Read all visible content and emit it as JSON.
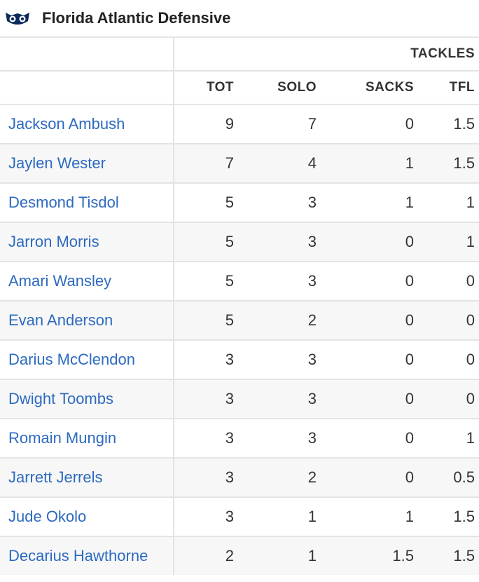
{
  "header": {
    "title": "Florida Atlantic Defensive"
  },
  "table": {
    "group_header": "TACKLES",
    "columns": [
      "TOT",
      "SOLO",
      "SACKS",
      "TFL"
    ],
    "rows": [
      [
        "Jackson Ambush",
        9,
        7,
        0,
        1.5
      ],
      [
        "Jaylen Wester",
        7,
        4,
        1,
        1.5
      ],
      [
        "Desmond Tisdol",
        5,
        3,
        1,
        1
      ],
      [
        "Jarron Morris",
        5,
        3,
        0,
        1
      ],
      [
        "Amari Wansley",
        5,
        3,
        0,
        0
      ],
      [
        "Evan Anderson",
        5,
        2,
        0,
        0
      ],
      [
        "Darius McClendon",
        3,
        3,
        0,
        0
      ],
      [
        "Dwight Toombs",
        3,
        3,
        0,
        0
      ],
      [
        "Romain Mungin",
        3,
        3,
        0,
        1
      ],
      [
        "Jarrett Jerrels",
        3,
        2,
        0,
        0.5
      ],
      [
        "Jude Okolo",
        3,
        1,
        1,
        1.5
      ],
      [
        "Decarius Hawthorne",
        2,
        1,
        1.5,
        1.5
      ]
    ]
  }
}
